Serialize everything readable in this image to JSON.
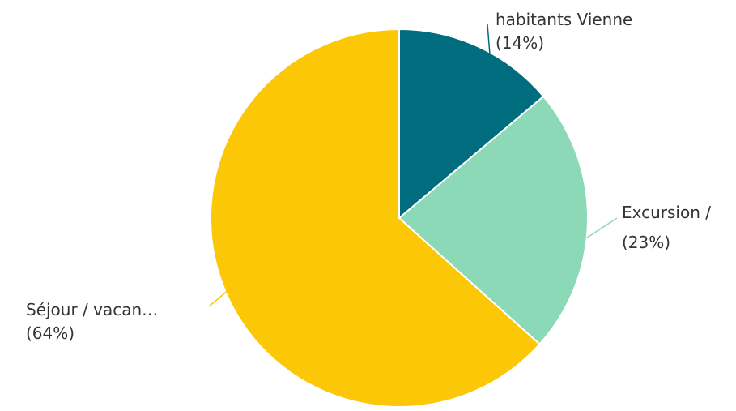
{
  "chart_data": {
    "type": "pie",
    "title": "",
    "slices": [
      {
        "label": "habitants Vienne",
        "percent_label": "(14%)",
        "value": 14,
        "color": "#006d7e"
      },
      {
        "label": "Excursion /",
        "percent_label": "(23%)",
        "value": 23,
        "color": "#8cd9b7"
      },
      {
        "label": "Séjour / vacan…",
        "percent_label": "(64%)",
        "value": 64,
        "color": "#fcc707"
      }
    ],
    "start_angle_deg": 0,
    "direction": "clockwise",
    "legend": "none",
    "slice_border_color": "#ffffff",
    "leader_line_colors": [
      "#006d7e",
      "#8cd9b7",
      "#fcc707"
    ]
  }
}
